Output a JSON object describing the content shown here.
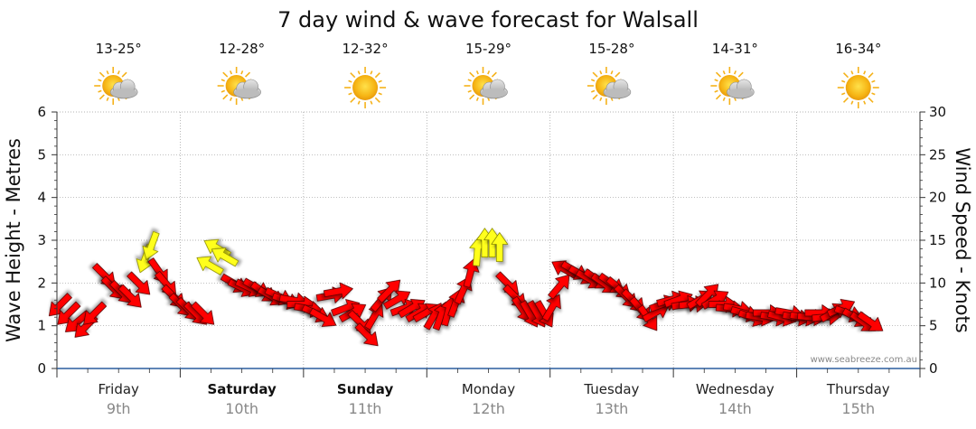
{
  "chart_data": {
    "type": "line",
    "title": "7 day wind & wave forecast for Walsall",
    "ylabel_left": "Wave Height - Metres",
    "ylabel_right": "Wind Speed - Knots",
    "ylim_left": [
      0,
      6
    ],
    "ylim_right": [
      0,
      30
    ],
    "yticks_left": [
      "0",
      "1",
      "2",
      "3",
      "4",
      "5",
      "6"
    ],
    "yticks_right": [
      "0",
      "5",
      "10",
      "15",
      "20",
      "25",
      "30"
    ],
    "days": [
      {
        "name": "Friday",
        "date": "9th",
        "temp": "13-25°",
        "weather": "partly-cloudy",
        "bold": false
      },
      {
        "name": "Saturday",
        "date": "10th",
        "temp": "12-28°",
        "weather": "partly-cloudy",
        "bold": true
      },
      {
        "name": "Sunday",
        "date": "11th",
        "temp": "12-32°",
        "weather": "sunny",
        "bold": true
      },
      {
        "name": "Monday",
        "date": "12th",
        "temp": "15-29°",
        "weather": "partly-cloudy",
        "bold": false
      },
      {
        "name": "Tuesday",
        "date": "13th",
        "temp": "15-28°",
        "weather": "partly-cloudy",
        "bold": false
      },
      {
        "name": "Wednesday",
        "date": "14th",
        "temp": "14-31°",
        "weather": "partly-cloudy",
        "bold": false
      },
      {
        "name": "Thursday",
        "date": "15th",
        "temp": "16-34°",
        "weather": "sunny",
        "bold": false
      }
    ],
    "series": [
      {
        "name": "Wind Speed - Knots (arrows)",
        "axis": "right",
        "x_unit": "days since Friday 00:00",
        "points": [
          {
            "x": 0.03,
            "y": 7.5,
            "dir": 225
          },
          {
            "x": 0.1,
            "y": 6.5,
            "dir": 225
          },
          {
            "x": 0.17,
            "y": 5.5,
            "dir": 230
          },
          {
            "x": 0.24,
            "y": 5.0,
            "dir": 225
          },
          {
            "x": 0.31,
            "y": 6.5,
            "dir": 225
          },
          {
            "x": 0.38,
            "y": 11.0,
            "dir": 135
          },
          {
            "x": 0.45,
            "y": 9.5,
            "dir": 135
          },
          {
            "x": 0.52,
            "y": 9.0,
            "dir": 135
          },
          {
            "x": 0.59,
            "y": 8.5,
            "dir": 135
          },
          {
            "x": 0.66,
            "y": 10.0,
            "dir": 135
          },
          {
            "x": 0.72,
            "y": 13.0,
            "dir": 200
          },
          {
            "x": 0.77,
            "y": 14.5,
            "dir": 200
          },
          {
            "x": 0.82,
            "y": 11.5,
            "dir": 145
          },
          {
            "x": 0.88,
            "y": 10.0,
            "dir": 140
          },
          {
            "x": 0.94,
            "y": 8.5,
            "dir": 135
          },
          {
            "x": 1.0,
            "y": 7.5,
            "dir": 135
          },
          {
            "x": 1.06,
            "y": 7.0,
            "dir": 135
          },
          {
            "x": 1.12,
            "y": 6.5,
            "dir": 135
          },
          {
            "x": 1.18,
            "y": 6.5,
            "dir": 135
          },
          {
            "x": 1.25,
            "y": 12.0,
            "dir": 300
          },
          {
            "x": 1.31,
            "y": 14.0,
            "dir": 300
          },
          {
            "x": 1.37,
            "y": 13.0,
            "dir": 300
          },
          {
            "x": 1.43,
            "y": 10.0,
            "dir": 120
          },
          {
            "x": 1.49,
            "y": 9.5,
            "dir": 115
          },
          {
            "x": 1.55,
            "y": 9.5,
            "dir": 115
          },
          {
            "x": 1.61,
            "y": 9.5,
            "dir": 120
          },
          {
            "x": 1.67,
            "y": 9.0,
            "dir": 125
          },
          {
            "x": 1.73,
            "y": 8.5,
            "dir": 120
          },
          {
            "x": 1.79,
            "y": 8.5,
            "dir": 115
          },
          {
            "x": 1.85,
            "y": 8.0,
            "dir": 110
          },
          {
            "x": 1.91,
            "y": 8.0,
            "dir": 100
          },
          {
            "x": 1.97,
            "y": 7.5,
            "dir": 90
          },
          {
            "x": 2.03,
            "y": 7.0,
            "dir": 100
          },
          {
            "x": 2.09,
            "y": 6.5,
            "dir": 115
          },
          {
            "x": 2.15,
            "y": 6.0,
            "dir": 120
          },
          {
            "x": 2.21,
            "y": 8.5,
            "dir": 80
          },
          {
            "x": 2.27,
            "y": 9.0,
            "dir": 80
          },
          {
            "x": 2.33,
            "y": 7.0,
            "dir": 70
          },
          {
            "x": 2.39,
            "y": 6.5,
            "dir": 60
          },
          {
            "x": 2.45,
            "y": 5.5,
            "dir": 135
          },
          {
            "x": 2.51,
            "y": 4.0,
            "dir": 135
          },
          {
            "x": 2.57,
            "y": 6.0,
            "dir": 30
          },
          {
            "x": 2.63,
            "y": 8.0,
            "dir": 40
          },
          {
            "x": 2.69,
            "y": 9.0,
            "dir": 45
          },
          {
            "x": 2.75,
            "y": 8.0,
            "dir": 60
          },
          {
            "x": 2.81,
            "y": 7.0,
            "dir": 70
          },
          {
            "x": 2.87,
            "y": 7.0,
            "dir": 60
          },
          {
            "x": 2.93,
            "y": 6.5,
            "dir": 60
          },
          {
            "x": 2.99,
            "y": 6.5,
            "dir": 60
          },
          {
            "x": 3.05,
            "y": 6.0,
            "dir": 30
          },
          {
            "x": 3.11,
            "y": 6.0,
            "dir": 20
          },
          {
            "x": 3.17,
            "y": 6.5,
            "dir": 15
          },
          {
            "x": 3.23,
            "y": 7.5,
            "dir": 20
          },
          {
            "x": 3.29,
            "y": 9.0,
            "dir": 25
          },
          {
            "x": 3.35,
            "y": 11.0,
            "dir": 15
          },
          {
            "x": 3.41,
            "y": 13.5,
            "dir": 5
          },
          {
            "x": 3.47,
            "y": 14.5,
            "dir": 0
          },
          {
            "x": 3.53,
            "y": 14.5,
            "dir": 0
          },
          {
            "x": 3.59,
            "y": 14.0,
            "dir": 0
          },
          {
            "x": 3.65,
            "y": 10.0,
            "dir": 135
          },
          {
            "x": 3.71,
            "y": 8.5,
            "dir": 135
          },
          {
            "x": 3.77,
            "y": 7.0,
            "dir": 145
          },
          {
            "x": 3.83,
            "y": 6.5,
            "dir": 150
          },
          {
            "x": 3.89,
            "y": 6.5,
            "dir": 150
          },
          {
            "x": 3.95,
            "y": 6.5,
            "dir": 150
          },
          {
            "x": 4.01,
            "y": 7.0,
            "dir": 30
          },
          {
            "x": 4.07,
            "y": 9.5,
            "dir": 40
          },
          {
            "x": 4.13,
            "y": 11.5,
            "dir": 300
          },
          {
            "x": 4.19,
            "y": 11.5,
            "dir": 120
          },
          {
            "x": 4.25,
            "y": 11.0,
            "dir": 120
          },
          {
            "x": 4.31,
            "y": 10.5,
            "dir": 120
          },
          {
            "x": 4.37,
            "y": 10.5,
            "dir": 125
          },
          {
            "x": 4.43,
            "y": 10.0,
            "dir": 125
          },
          {
            "x": 4.49,
            "y": 10.0,
            "dir": 125
          },
          {
            "x": 4.55,
            "y": 9.5,
            "dir": 130
          },
          {
            "x": 4.61,
            "y": 8.5,
            "dir": 135
          },
          {
            "x": 4.67,
            "y": 8.0,
            "dir": 135
          },
          {
            "x": 4.73,
            "y": 7.0,
            "dir": 140
          },
          {
            "x": 4.79,
            "y": 6.0,
            "dir": 145
          },
          {
            "x": 4.85,
            "y": 6.5,
            "dir": 60
          },
          {
            "x": 4.91,
            "y": 7.5,
            "dir": 70
          },
          {
            "x": 4.97,
            "y": 8.0,
            "dir": 75
          },
          {
            "x": 5.03,
            "y": 8.0,
            "dir": 70
          },
          {
            "x": 5.09,
            "y": 7.5,
            "dir": 80
          },
          {
            "x": 5.15,
            "y": 7.5,
            "dir": 85
          },
          {
            "x": 5.21,
            "y": 8.0,
            "dir": 60
          },
          {
            "x": 5.27,
            "y": 8.5,
            "dir": 45
          },
          {
            "x": 5.33,
            "y": 8.0,
            "dir": 60
          },
          {
            "x": 5.39,
            "y": 7.5,
            "dir": 90
          },
          {
            "x": 5.45,
            "y": 7.0,
            "dir": 95
          },
          {
            "x": 5.51,
            "y": 7.0,
            "dir": 100
          },
          {
            "x": 5.57,
            "y": 6.5,
            "dir": 105
          },
          {
            "x": 5.63,
            "y": 6.0,
            "dir": 110
          },
          {
            "x": 5.69,
            "y": 6.0,
            "dir": 100
          },
          {
            "x": 5.75,
            "y": 6.5,
            "dir": 90
          },
          {
            "x": 5.81,
            "y": 6.0,
            "dir": 100
          },
          {
            "x": 5.87,
            "y": 6.0,
            "dir": 105
          },
          {
            "x": 5.93,
            "y": 6.5,
            "dir": 100
          },
          {
            "x": 5.99,
            "y": 6.0,
            "dir": 100
          },
          {
            "x": 6.05,
            "y": 6.0,
            "dir": 100
          },
          {
            "x": 6.11,
            "y": 6.0,
            "dir": 95
          },
          {
            "x": 6.17,
            "y": 6.5,
            "dir": 90
          },
          {
            "x": 6.23,
            "y": 6.0,
            "dir": 85
          },
          {
            "x": 6.29,
            "y": 6.5,
            "dir": 60
          },
          {
            "x": 6.35,
            "y": 7.0,
            "dir": 65
          },
          {
            "x": 6.41,
            "y": 6.5,
            "dir": 110
          },
          {
            "x": 6.47,
            "y": 6.0,
            "dir": 120
          },
          {
            "x": 6.53,
            "y": 5.5,
            "dir": 125
          },
          {
            "x": 6.59,
            "y": 5.5,
            "dir": 125
          }
        ],
        "highlight_ranges_yellow": [
          [
            0.7,
            0.8
          ],
          [
            1.22,
            1.4
          ],
          [
            3.38,
            3.62
          ]
        ]
      }
    ],
    "credit": "www.seabreeze.com.au"
  }
}
